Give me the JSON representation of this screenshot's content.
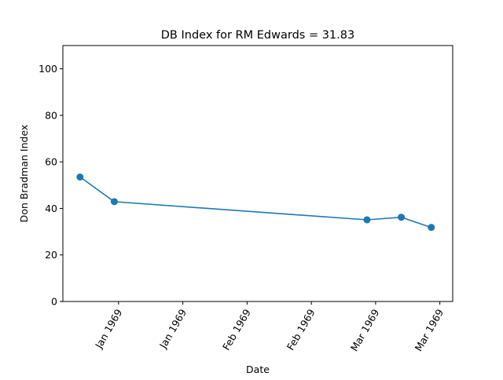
{
  "chart_data": {
    "type": "line",
    "title": "DB Index for RM Edwards = 31.83",
    "xlabel": "Date",
    "ylabel": "Don Bradman Index",
    "x_ticks": [
      {
        "date": "1968-12-31",
        "label": "Jan 1969"
      },
      {
        "date": "1969-01-15",
        "label": "Jan 1969"
      },
      {
        "date": "1969-01-30",
        "label": "Feb 1969"
      },
      {
        "date": "1969-02-14",
        "label": "Feb 1969"
      },
      {
        "date": "1969-03-01",
        "label": "Mar 1969"
      },
      {
        "date": "1969-03-16",
        "label": "Mar 1969"
      }
    ],
    "xlim": [
      "1968-12-18",
      "1969-03-19"
    ],
    "ylim": [
      0,
      110
    ],
    "y_ticks": [
      0,
      20,
      40,
      60,
      80,
      100
    ],
    "grid": false,
    "legend": "none",
    "series": [
      {
        "color": "#1f77b4",
        "points": [
          {
            "x": "1968-12-22",
            "y": 53.5
          },
          {
            "x": "1968-12-30",
            "y": 42.9
          },
          {
            "x": "1969-02-27",
            "y": 35.1
          },
          {
            "x": "1969-03-07",
            "y": 36.2
          },
          {
            "x": "1969-03-14",
            "y": 31.83
          }
        ]
      }
    ]
  }
}
